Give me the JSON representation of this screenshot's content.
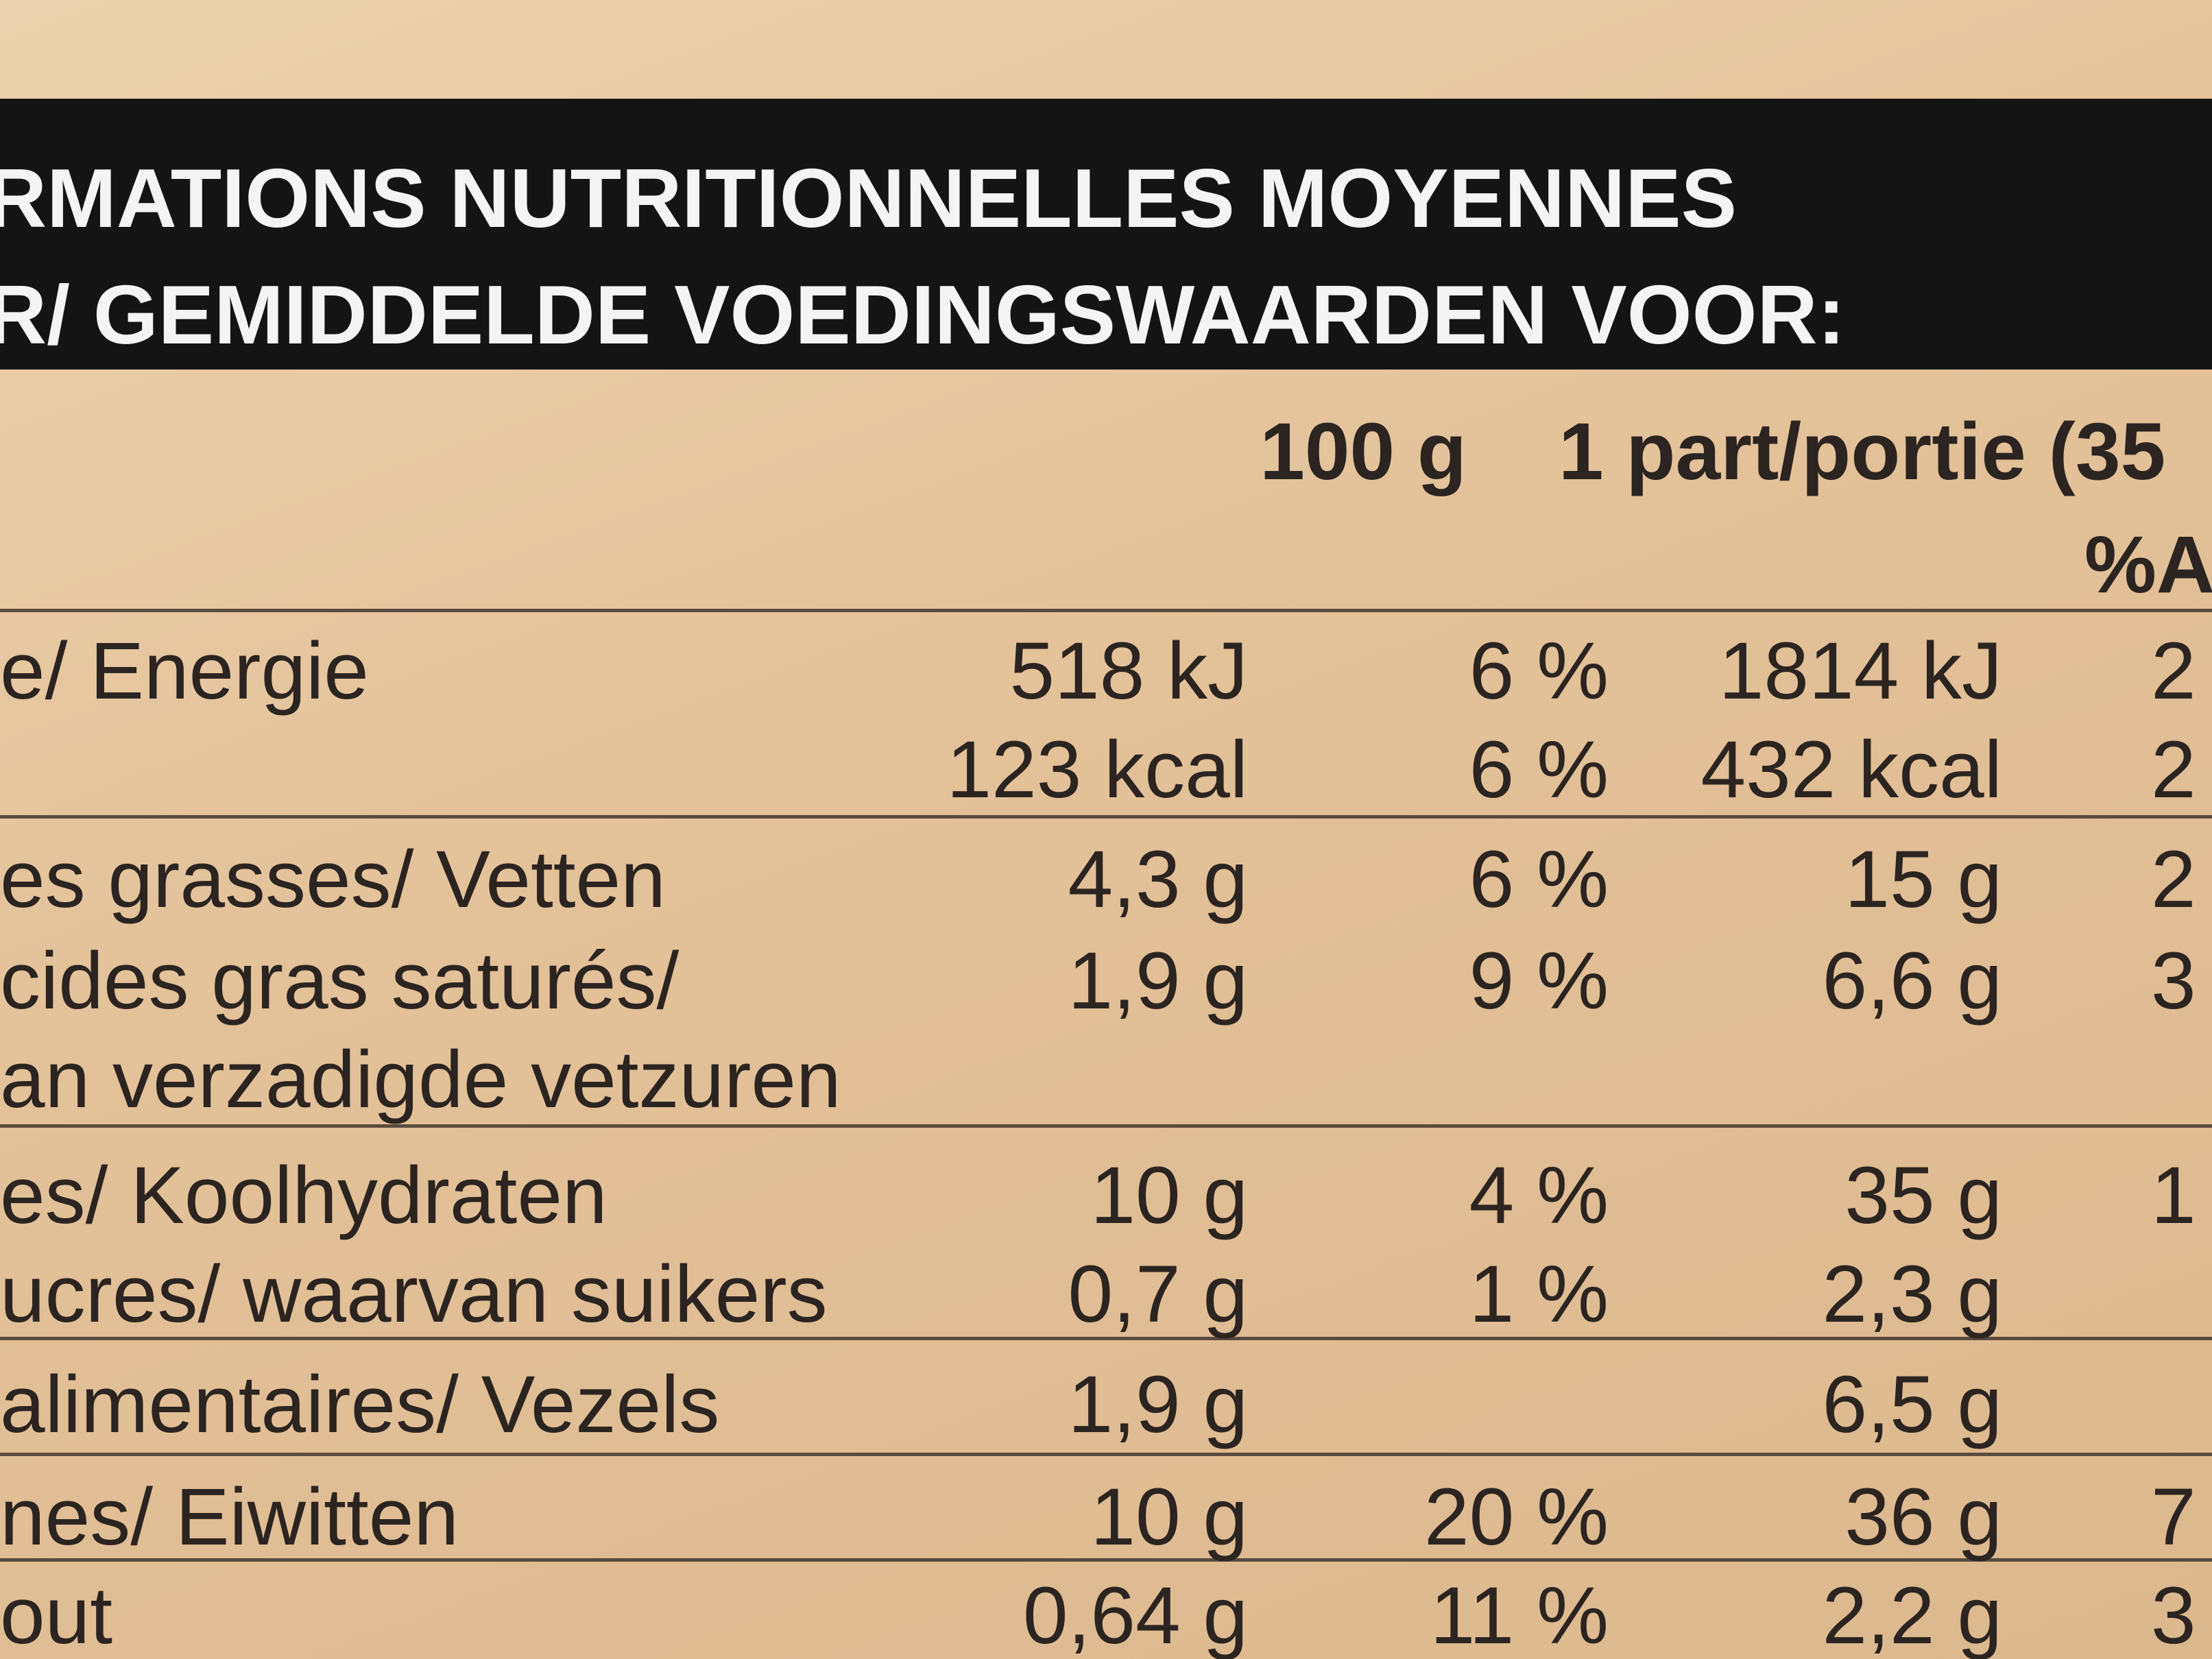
{
  "header": {
    "line1": "RMATIONS NUTRITIONNELLES MOYENNES",
    "line2": "R/ GEMIDDELDE VOEDINGSWAARDEN VOOR:"
  },
  "columns": {
    "per100": "100 g",
    "portion": "1 part/portie (35",
    "pct": "%A"
  },
  "rows": [
    {
      "label": "e/ Energie",
      "per100": "518 kJ",
      "pct100": "6 %",
      "portion": "1814 kJ",
      "pctPortion": "2"
    },
    {
      "per100": "123 kcal",
      "pct100": "6 %",
      "portion": "432 kcal",
      "pctPortion": "2"
    },
    {
      "label": "es grasses/ Vetten",
      "per100": "4,3 g",
      "pct100": "6 %",
      "portion": "15 g",
      "pctPortion": "2"
    },
    {
      "label": "cides gras saturés/",
      "per100": "1,9 g",
      "pct100": "9 %",
      "portion": "6,6 g",
      "pctPortion": "3"
    },
    {
      "label": "an verzadigde vetzuren"
    },
    {
      "label": "es/ Koolhydraten",
      "per100": "10 g",
      "pct100": "4 %",
      "portion": "35 g",
      "pctPortion": "1"
    },
    {
      "label": "ucres/ waarvan suikers",
      "per100": "0,7 g",
      "pct100": "1 %",
      "portion": "2,3 g"
    },
    {
      "label": "alimentaires/ Vezels",
      "per100": "1,9 g",
      "portion": "6,5 g"
    },
    {
      "label": "nes/ Eiwitten",
      "per100": "10 g",
      "pct100": "20 %",
      "portion": "36 g",
      "pctPortion": "7"
    },
    {
      "label": "out",
      "per100": "0,64 g",
      "pct100": "11 %",
      "portion": "2,2 g",
      "pctPortion": "3"
    }
  ]
}
